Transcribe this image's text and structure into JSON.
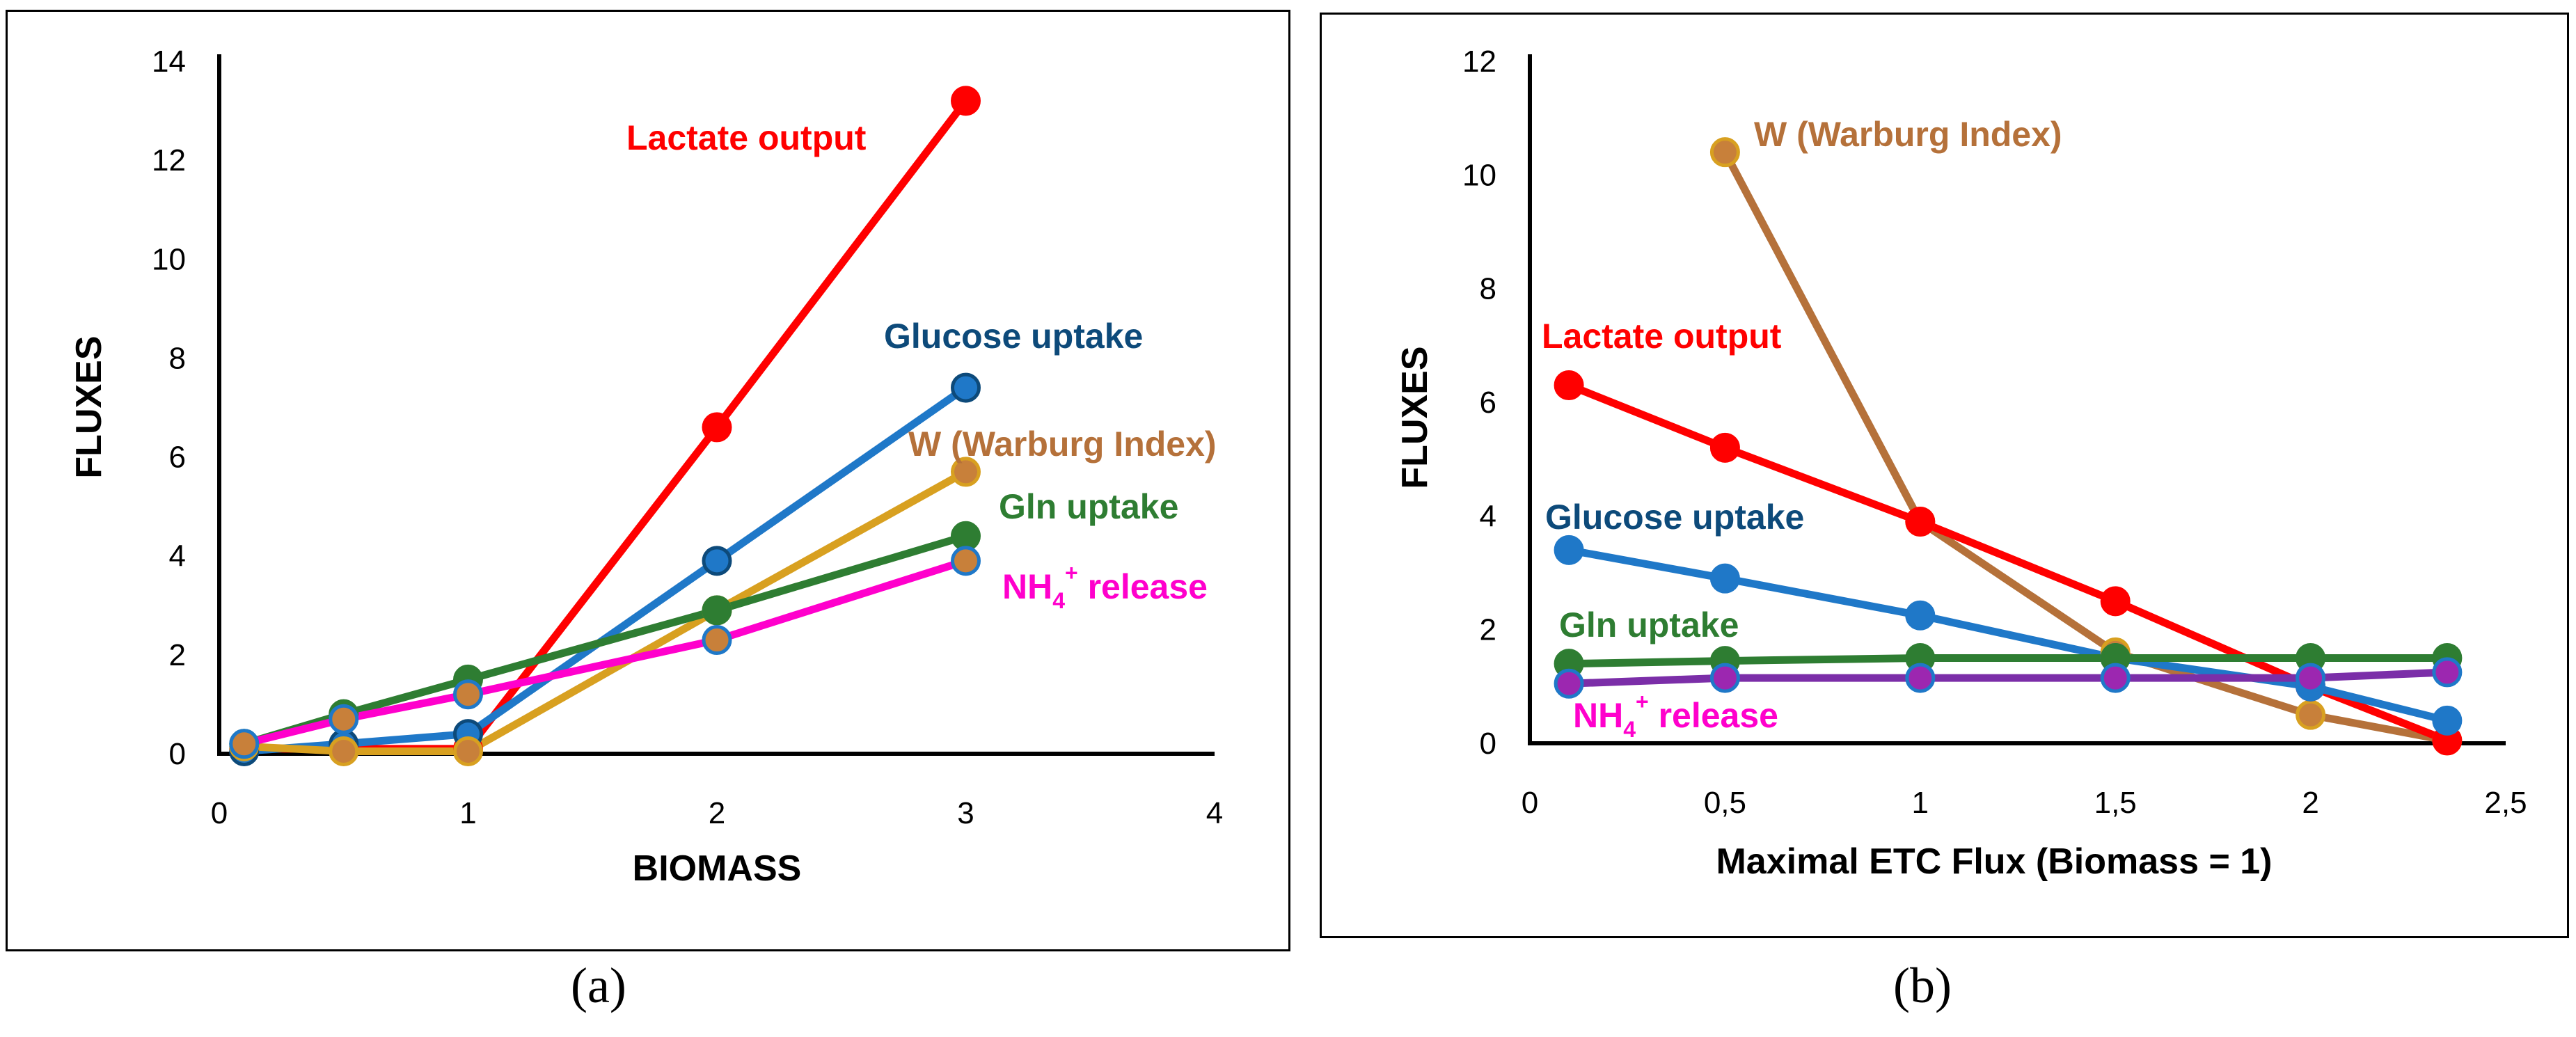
{
  "chart_data": [
    {
      "panel": "a",
      "type": "line",
      "caption": "(a)",
      "xlabel": "BIOMASS",
      "ylabel": "FLUXES",
      "xlim": [
        0,
        4
      ],
      "ylim": [
        0,
        14
      ],
      "xticks": [
        "0",
        "1",
        "2",
        "3",
        "4"
      ],
      "yticks": [
        "0",
        "2",
        "4",
        "6",
        "8",
        "10",
        "12",
        "14"
      ],
      "grid": false,
      "legend": "inline labels",
      "series": [
        {
          "name": "Lactate output",
          "label_text": "Lactate output",
          "label_sup": "",
          "label_tail": "",
          "color": "#ff0000",
          "marker_fill": "#ff0000",
          "marker_stroke": "#ff0000",
          "x": [
            0.1,
            1,
            2,
            3
          ],
          "y": [
            0.1,
            0.1,
            6.6,
            13.2
          ]
        },
        {
          "name": "Glucose uptake",
          "label_text": "Glucose uptake",
          "label_sup": "",
          "label_tail": "",
          "color": "#1f78c8",
          "marker_fill": "#1f78c8",
          "marker_stroke": "#0d4a7a",
          "x": [
            0.1,
            0.5,
            1,
            2,
            3
          ],
          "y": [
            0.05,
            0.2,
            0.4,
            3.9,
            7.4
          ]
        },
        {
          "name": "W (Warburg Index)",
          "label_text": "W (Warburg Index)",
          "label_sup": "",
          "label_tail": "",
          "color": "#d8a020",
          "marker_fill": "#c8803a",
          "marker_stroke": "#d8a020",
          "x": [
            0.1,
            0.5,
            1,
            2,
            3
          ],
          "y": [
            0.15,
            0.05,
            0.05,
            2.9,
            5.7
          ]
        },
        {
          "name": "Gln uptake",
          "label_text": "Gln uptake",
          "label_sup": "",
          "label_tail": "",
          "color": "#2e7d32",
          "marker_fill": "#2e7d32",
          "marker_stroke": "#2e7d32",
          "x": [
            0.1,
            0.5,
            1,
            2,
            3
          ],
          "y": [
            0.2,
            0.8,
            1.5,
            2.9,
            4.4
          ]
        },
        {
          "name": "NH4+ release",
          "label_text": "NH",
          "label_sup": "4+",
          "label_tail": " release",
          "color": "#ff00cc",
          "marker_fill": "#c8803a",
          "marker_stroke": "#1f78c8",
          "x": [
            0.1,
            0.5,
            1,
            2,
            3
          ],
          "y": [
            0.2,
            0.7,
            1.2,
            2.3,
            3.9
          ]
        }
      ]
    },
    {
      "panel": "b",
      "type": "line",
      "caption": "(b)",
      "xlabel": "Maximal ETC Flux (Biomass = 1)",
      "ylabel": "FLUXES",
      "xlim": [
        0,
        2.5
      ],
      "ylim": [
        0,
        12
      ],
      "xticks": [
        "0",
        "0,5",
        "1",
        "1,5",
        "2",
        "2,5"
      ],
      "yticks": [
        "0",
        "2",
        "4",
        "6",
        "8",
        "10",
        "12"
      ],
      "grid": false,
      "legend": "inline labels",
      "series": [
        {
          "name": "W (Warburg Index)",
          "label_text": "W (Warburg Index)",
          "label_sup": "",
          "label_tail": "",
          "color": "#b5713a",
          "marker_fill": "#c8803a",
          "marker_stroke": "#d8a020",
          "x": [
            0.5,
            1,
            1.5,
            2,
            2.35
          ],
          "y": [
            10.4,
            3.9,
            1.6,
            0.5,
            0.05
          ]
        },
        {
          "name": "Lactate output",
          "label_text": "Lactate output",
          "label_sup": "",
          "label_tail": "",
          "color": "#ff0000",
          "marker_fill": "#ff0000",
          "marker_stroke": "#ff0000",
          "x": [
            0.1,
            0.5,
            1,
            1.5,
            2,
            2.35
          ],
          "y": [
            6.3,
            5.2,
            3.9,
            2.5,
            1.0,
            0.05
          ]
        },
        {
          "name": "Glucose uptake",
          "label_text": "Glucose uptake",
          "label_sup": "",
          "label_tail": "",
          "color": "#1f78c8",
          "marker_fill": "#1f78c8",
          "marker_stroke": "#1f78c8",
          "x": [
            0.1,
            0.5,
            1,
            1.5,
            2,
            2.35
          ],
          "y": [
            3.4,
            2.9,
            2.25,
            1.5,
            1.0,
            0.4
          ]
        },
        {
          "name": "Gln uptake",
          "label_text": "Gln uptake",
          "label_sup": "",
          "label_tail": "",
          "color": "#2e7d32",
          "marker_fill": "#2e7d32",
          "marker_stroke": "#2e7d32",
          "x": [
            0.1,
            0.5,
            1,
            1.5,
            2,
            2.35
          ],
          "y": [
            1.4,
            1.45,
            1.5,
            1.5,
            1.5,
            1.5
          ]
        },
        {
          "name": "NH4+ release",
          "label_text": "NH",
          "label_sup": "4+",
          "label_tail": " release",
          "color": "#7b2ea8",
          "marker_fill": "#9c27b0",
          "marker_stroke": "#1f78c8",
          "x": [
            0.1,
            0.5,
            1,
            1.5,
            2,
            2.35
          ],
          "y": [
            1.05,
            1.15,
            1.15,
            1.15,
            1.15,
            1.25
          ]
        }
      ]
    }
  ],
  "label_colors": {
    "a": [
      "#ff0000",
      "#0d4a7a",
      "#b5713a",
      "#2e7d32",
      "#ff00cc"
    ],
    "b": [
      "#b5713a",
      "#ff0000",
      "#0d4a7a",
      "#2e7d32",
      "#ff00cc"
    ]
  }
}
